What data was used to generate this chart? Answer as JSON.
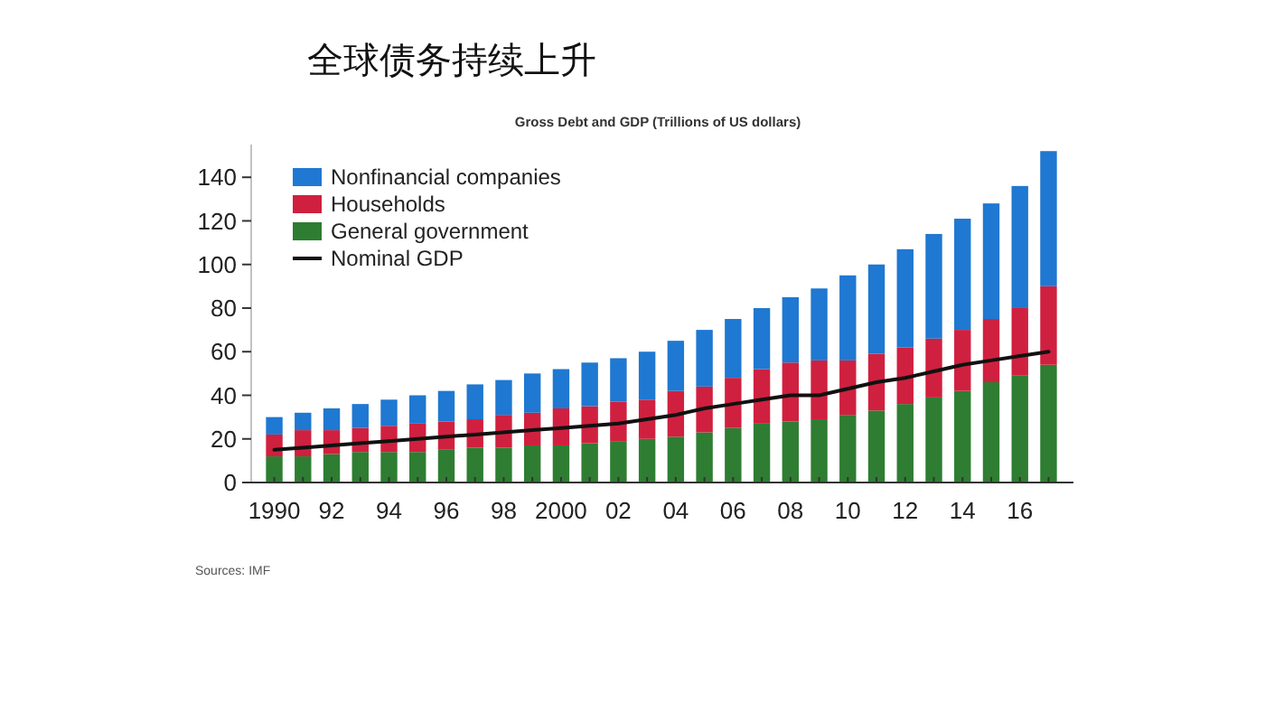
{
  "chart_data": {
    "type": "bar",
    "title": "全球债务持续上升",
    "subtitle": "Gross Debt and GDP (Trillions of US dollars)",
    "categories": [
      "1990",
      null,
      "92",
      null,
      "94",
      null,
      "96",
      null,
      "98",
      null,
      "2000",
      null,
      "02",
      null,
      "04",
      null,
      "06",
      null,
      "08",
      null,
      "10",
      null,
      "12",
      null,
      "14",
      null,
      "16",
      null
    ],
    "stacked": true,
    "series": [
      {
        "name": "General government",
        "color": "#2e7d32",
        "values": [
          12,
          12,
          13,
          14,
          14,
          14,
          15,
          16,
          16,
          17,
          17,
          18,
          19,
          20,
          21,
          23,
          25,
          27,
          28,
          29,
          31,
          33,
          36,
          39,
          42,
          46,
          49,
          54
        ]
      },
      {
        "name": "Households",
        "color": "#d0203f",
        "values": [
          10,
          12,
          11,
          11,
          12,
          13,
          13,
          13,
          15,
          15,
          17,
          17,
          18,
          18,
          21,
          21,
          23,
          25,
          27,
          27,
          25,
          26,
          26,
          27,
          28,
          29,
          31,
          36
        ]
      },
      {
        "name": "Nonfinancial companies",
        "color": "#1f78d1",
        "values": [
          8,
          8,
          10,
          11,
          12,
          13,
          14,
          16,
          16,
          18,
          18,
          20,
          20,
          22,
          23,
          26,
          27,
          28,
          30,
          33,
          39,
          41,
          45,
          48,
          51,
          53,
          56,
          62
        ]
      },
      {
        "name": "Nominal GDP",
        "type": "line",
        "color": "#111111",
        "values": [
          15,
          16,
          17,
          18,
          19,
          20,
          21,
          22,
          23,
          24,
          25,
          26,
          27,
          29,
          31,
          34,
          36,
          38,
          40,
          40,
          43,
          46,
          48,
          51,
          54,
          56,
          58,
          60
        ]
      }
    ],
    "ylim": [
      0,
      155
    ],
    "yticks": [
      0,
      20,
      40,
      60,
      80,
      100,
      120,
      140
    ],
    "grid": false,
    "legend": "top left",
    "marker": "none",
    "annotations": [
      "Sources: IMF"
    ]
  }
}
